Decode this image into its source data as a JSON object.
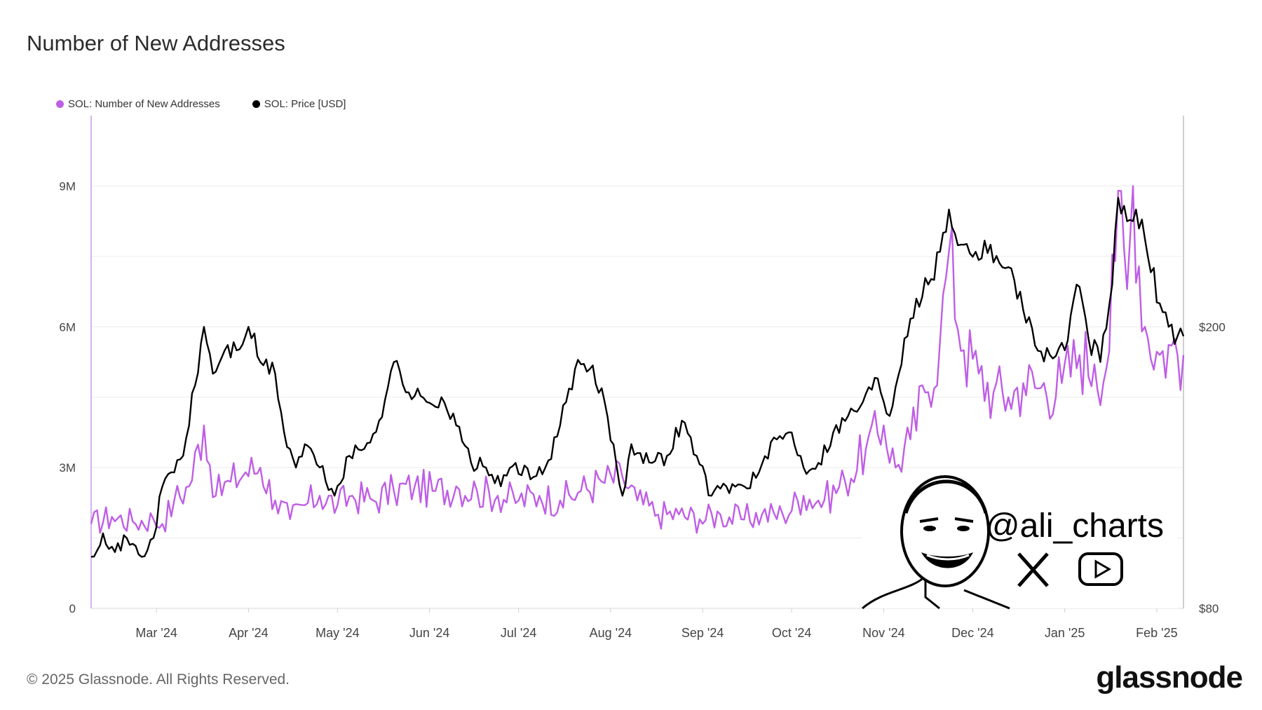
{
  "title": "Number of New Addresses",
  "legend": [
    {
      "label": "SOL: Number of New Addresses",
      "color": "#bf5ee6"
    },
    {
      "label": "SOL: Price [USD]",
      "color": "#000000"
    }
  ],
  "footer": "© 2025 Glassnode. All Rights Reserved.",
  "brand": "glassnode",
  "watermark": {
    "handle": "@ali_charts",
    "icons": [
      "x-logo-icon",
      "youtube-icon",
      "cartoon-face-avatar"
    ]
  },
  "chart_data": {
    "type": "line",
    "title": "Number of New Addresses",
    "x_start": "2024-02-08",
    "x_end": "2025-02-10",
    "x_ticks": [
      "Mar '24",
      "Apr '24",
      "May '24",
      "Jun '24",
      "Jul '24",
      "Aug '24",
      "Sep '24",
      "Oct '24",
      "Nov '24",
      "Dec '24",
      "Jan '25",
      "Feb '25"
    ],
    "y_left": {
      "ticks": [
        0,
        3000000,
        6000000,
        9000000
      ],
      "labels": [
        "0",
        "3M",
        "6M",
        "9M"
      ],
      "range": [
        0,
        10500000
      ]
    },
    "y_right": {
      "ticks": [
        80,
        200
      ],
      "labels": [
        "$80",
        "$200"
      ]
    },
    "grid": true,
    "legend_position": "top-left",
    "series": [
      {
        "name": "SOL: Number of New Addresses",
        "axis": "left",
        "color": "#bf5ee6",
        "values": [
          [
            "2024-02-08",
            1800000
          ],
          [
            "2024-02-15",
            1950000
          ],
          [
            "2024-02-22",
            1850000
          ],
          [
            "2024-02-29",
            1900000
          ],
          [
            "2024-03-03",
            1800000
          ],
          [
            "2024-03-07",
            2300000
          ],
          [
            "2024-03-12",
            2600000
          ],
          [
            "2024-03-17",
            3900000
          ],
          [
            "2024-03-21",
            2400000
          ],
          [
            "2024-03-26",
            2700000
          ],
          [
            "2024-03-31",
            2900000
          ],
          [
            "2024-04-05",
            3000000
          ],
          [
            "2024-04-10",
            2300000
          ],
          [
            "2024-04-15",
            1900000
          ],
          [
            "2024-04-20",
            2200000
          ],
          [
            "2024-04-25",
            2400000
          ],
          [
            "2024-05-01",
            2200000
          ],
          [
            "2024-05-06",
            2400000
          ],
          [
            "2024-05-13",
            2300000
          ],
          [
            "2024-05-20",
            2500000
          ],
          [
            "2024-05-27",
            2600000
          ],
          [
            "2024-06-03",
            2500000
          ],
          [
            "2024-06-10",
            2600000
          ],
          [
            "2024-06-17",
            2500000
          ],
          [
            "2024-06-24",
            2400000
          ],
          [
            "2024-07-01",
            2300000
          ],
          [
            "2024-07-08",
            2400000
          ],
          [
            "2024-07-15",
            2300000
          ],
          [
            "2024-07-22",
            2500000
          ],
          [
            "2024-07-29",
            2700000
          ],
          [
            "2024-08-05",
            2800000
          ],
          [
            "2024-08-10",
            2300000
          ],
          [
            "2024-08-17",
            2000000
          ],
          [
            "2024-08-24",
            2000000
          ],
          [
            "2024-08-31",
            1900000
          ],
          [
            "2024-09-07",
            2000000
          ],
          [
            "2024-09-14",
            1900000
          ],
          [
            "2024-09-21",
            2000000
          ],
          [
            "2024-09-28",
            2000000
          ],
          [
            "2024-10-05",
            2400000
          ],
          [
            "2024-10-12",
            2300000
          ],
          [
            "2024-10-19",
            2700000
          ],
          [
            "2024-10-26",
            3400000
          ],
          [
            "2024-11-01",
            3900000
          ],
          [
            "2024-11-05",
            3000000
          ],
          [
            "2024-11-10",
            3600000
          ],
          [
            "2024-11-15",
            4600000
          ],
          [
            "2024-11-20",
            5700000
          ],
          [
            "2024-11-23",
            7600000
          ],
          [
            "2024-11-28",
            5500000
          ],
          [
            "2024-12-03",
            5000000
          ],
          [
            "2024-12-08",
            4600000
          ],
          [
            "2024-12-13",
            4500000
          ],
          [
            "2024-12-18",
            4800000
          ],
          [
            "2024-12-24",
            4700000
          ],
          [
            "2024-12-31",
            4800000
          ],
          [
            "2025-01-06",
            5400000
          ],
          [
            "2025-01-11",
            5200000
          ],
          [
            "2025-01-15",
            5100000
          ],
          [
            "2025-01-18",
            7400000
          ],
          [
            "2025-01-19",
            8900000
          ],
          [
            "2025-01-22",
            6800000
          ],
          [
            "2025-01-24",
            9000000
          ],
          [
            "2025-01-28",
            6000000
          ],
          [
            "2025-02-02",
            5400000
          ],
          [
            "2025-02-06",
            5600000
          ],
          [
            "2025-02-10",
            5400000
          ]
        ]
      },
      {
        "name": "SOL: Price [USD]",
        "axis": "right",
        "color": "#000000",
        "values": [
          [
            "2024-02-08",
            102
          ],
          [
            "2024-02-12",
            112
          ],
          [
            "2024-02-16",
            104
          ],
          [
            "2024-02-20",
            110
          ],
          [
            "2024-02-25",
            102
          ],
          [
            "2024-02-29",
            110
          ],
          [
            "2024-03-03",
            132
          ],
          [
            "2024-03-06",
            138
          ],
          [
            "2024-03-10",
            145
          ],
          [
            "2024-03-14",
            175
          ],
          [
            "2024-03-17",
            200
          ],
          [
            "2024-03-20",
            180
          ],
          [
            "2024-03-24",
            190
          ],
          [
            "2024-03-28",
            190
          ],
          [
            "2024-04-01",
            200
          ],
          [
            "2024-04-05",
            185
          ],
          [
            "2024-04-10",
            180
          ],
          [
            "2024-04-13",
            155
          ],
          [
            "2024-04-17",
            140
          ],
          [
            "2024-04-20",
            150
          ],
          [
            "2024-04-25",
            140
          ],
          [
            "2024-04-30",
            128
          ],
          [
            "2024-05-05",
            145
          ],
          [
            "2024-05-10",
            148
          ],
          [
            "2024-05-15",
            160
          ],
          [
            "2024-05-20",
            185
          ],
          [
            "2024-05-25",
            172
          ],
          [
            "2024-05-31",
            168
          ],
          [
            "2024-06-05",
            170
          ],
          [
            "2024-06-10",
            158
          ],
          [
            "2024-06-15",
            142
          ],
          [
            "2024-06-20",
            140
          ],
          [
            "2024-06-25",
            132
          ],
          [
            "2024-06-30",
            142
          ],
          [
            "2024-07-05",
            135
          ],
          [
            "2024-07-10",
            140
          ],
          [
            "2024-07-15",
            158
          ],
          [
            "2024-07-20",
            182
          ],
          [
            "2024-07-25",
            182
          ],
          [
            "2024-07-30",
            168
          ],
          [
            "2024-08-05",
            128
          ],
          [
            "2024-08-08",
            150
          ],
          [
            "2024-08-15",
            142
          ],
          [
            "2024-08-20",
            145
          ],
          [
            "2024-08-25",
            160
          ],
          [
            "2024-08-30",
            145
          ],
          [
            "2024-09-04",
            128
          ],
          [
            "2024-09-09",
            132
          ],
          [
            "2024-09-15",
            132
          ],
          [
            "2024-09-20",
            138
          ],
          [
            "2024-09-26",
            152
          ],
          [
            "2024-10-01",
            155
          ],
          [
            "2024-10-05",
            140
          ],
          [
            "2024-10-10",
            142
          ],
          [
            "2024-10-15",
            155
          ],
          [
            "2024-10-20",
            162
          ],
          [
            "2024-10-25",
            168
          ],
          [
            "2024-10-30",
            178
          ],
          [
            "2024-11-03",
            162
          ],
          [
            "2024-11-08",
            195
          ],
          [
            "2024-11-12",
            212
          ],
          [
            "2024-11-16",
            218
          ],
          [
            "2024-11-20",
            232
          ],
          [
            "2024-11-23",
            250
          ],
          [
            "2024-11-27",
            235
          ],
          [
            "2024-12-02",
            232
          ],
          [
            "2024-12-07",
            235
          ],
          [
            "2024-12-12",
            225
          ],
          [
            "2024-12-17",
            215
          ],
          [
            "2024-12-22",
            192
          ],
          [
            "2024-12-27",
            188
          ],
          [
            "2025-01-01",
            190
          ],
          [
            "2025-01-05",
            218
          ],
          [
            "2025-01-09",
            195
          ],
          [
            "2025-01-13",
            185
          ],
          [
            "2025-01-17",
            218
          ],
          [
            "2025-01-19",
            255
          ],
          [
            "2025-01-22",
            245
          ],
          [
            "2025-01-25",
            250
          ],
          [
            "2025-01-29",
            230
          ],
          [
            "2025-02-02",
            210
          ],
          [
            "2025-02-05",
            200
          ],
          [
            "2025-02-08",
            196
          ],
          [
            "2025-02-10",
            196
          ]
        ]
      }
    ]
  }
}
